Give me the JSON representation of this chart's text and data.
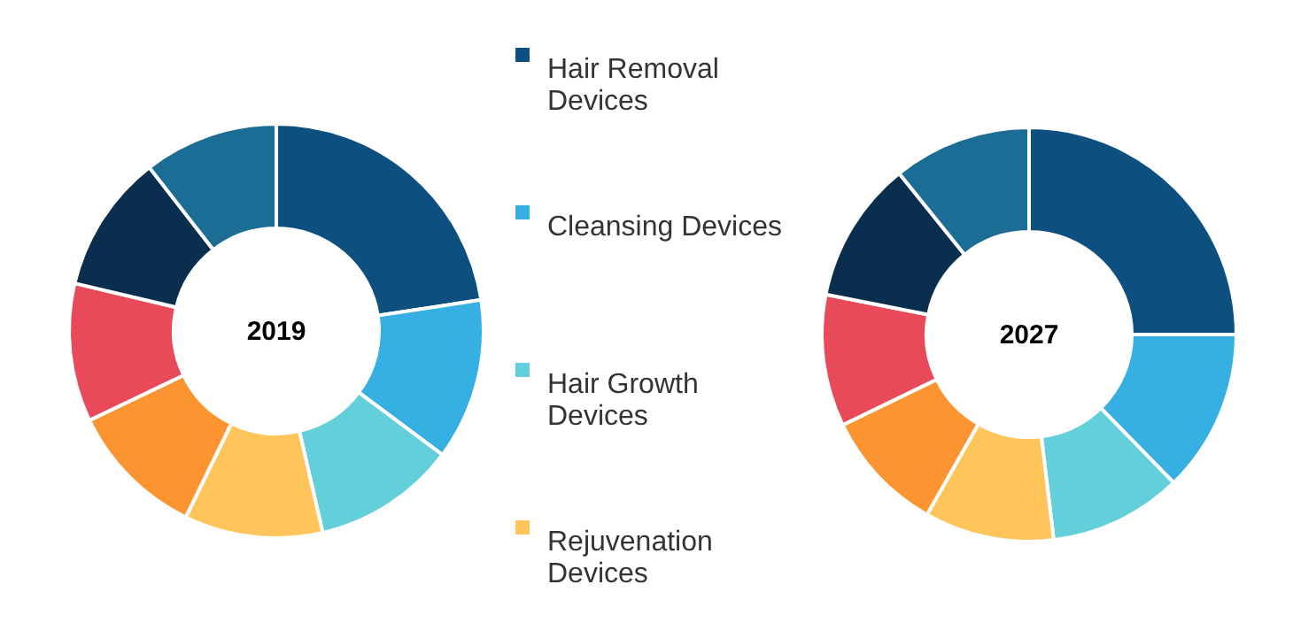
{
  "chart_data": [
    {
      "type": "donut",
      "title": "2019",
      "categories": [
        "Hair Removal Devices",
        "Cleansing Devices",
        "Hair Growth Devices",
        "Rejuvenation Devices",
        null,
        null,
        null,
        null
      ],
      "values": [
        22.6,
        12.6,
        11.2,
        10.8,
        10.7,
        10.8,
        10.8,
        10.5
      ],
      "colors": [
        "#0d4f7f",
        "#36b0e3",
        "#62cfdb",
        "#ffc55a",
        "#fb9431",
        "#e84a5a",
        "#0a2f4e",
        "#1b6d96"
      ],
      "legend": "right"
    },
    {
      "type": "donut",
      "title": "2027",
      "categories": [
        null,
        null,
        null,
        null,
        null,
        null,
        null,
        null
      ],
      "values": [
        25.0,
        12.7,
        10.4,
        10.1,
        9.6,
        10.3,
        11.1,
        10.8
      ],
      "colors": [
        "#0d4f7f",
        "#36b0e3",
        "#62cfdb",
        "#ffc55a",
        "#fb9431",
        "#e84a5a",
        "#0a2f4e",
        "#1b6d96"
      ]
    }
  ]
}
